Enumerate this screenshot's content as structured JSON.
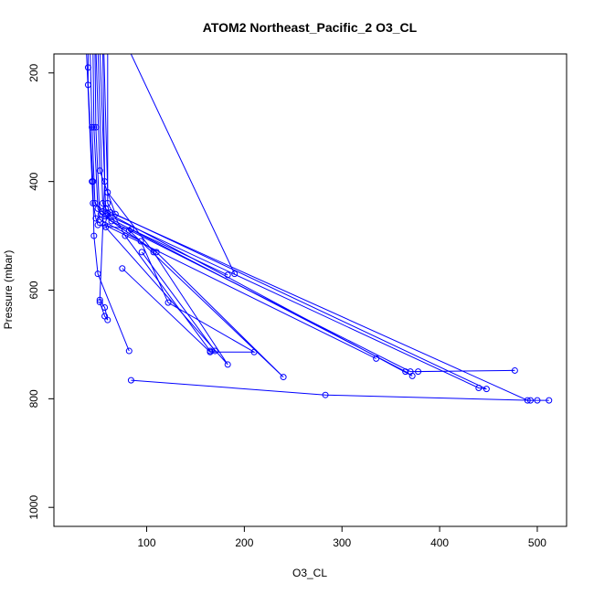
{
  "chart_data": {
    "type": "line",
    "title": "ATOM2 Northeast_Pacific_2 O3_CL",
    "xlabel": "O3_CL",
    "ylabel": "Pressure (mbar)",
    "xlim": [
      5,
      530
    ],
    "ylim": [
      1035,
      165
    ],
    "y_inverted": true,
    "x_ticks": [
      100,
      200,
      300,
      400,
      500
    ],
    "y_ticks": [
      200,
      400,
      600,
      800,
      1000
    ],
    "grid": false,
    "legend": "none",
    "series_color": "#0000ff",
    "series": [
      {
        "points": [
          [
            38,
            150
          ],
          [
            44,
            400
          ],
          [
            45,
            440
          ],
          [
            48,
            468
          ],
          [
            50,
            480
          ],
          [
            84,
            488
          ],
          [
            183,
            572
          ]
        ]
      },
      {
        "points": [
          [
            40,
            150
          ],
          [
            40,
            190
          ],
          [
            40,
            222
          ],
          [
            45,
            400
          ],
          [
            46,
            500
          ],
          [
            50,
            570
          ],
          [
            82,
            712
          ]
        ]
      },
      {
        "points": [
          [
            42,
            150
          ],
          [
            44,
            300
          ],
          [
            47,
            440
          ],
          [
            55,
            455
          ],
          [
            64,
            473
          ],
          [
            370,
            750
          ],
          [
            477,
            748
          ],
          [
            378,
            750
          ]
        ]
      },
      {
        "points": [
          [
            45,
            150
          ],
          [
            46,
            300
          ],
          [
            50,
            450
          ],
          [
            53,
            460
          ],
          [
            110,
            530
          ],
          [
            240,
            760
          ],
          [
            82,
            490
          ]
        ]
      },
      {
        "points": [
          [
            47,
            150
          ],
          [
            48,
            300
          ],
          [
            52,
            470
          ],
          [
            94,
            510
          ],
          [
            122,
            623
          ],
          [
            210,
            714
          ],
          [
            165,
            714
          ],
          [
            75,
            560
          ]
        ]
      },
      {
        "points": [
          [
            48,
            150
          ],
          [
            52,
            380
          ],
          [
            68,
            460
          ],
          [
            448,
            782
          ],
          [
            440,
            780
          ],
          [
            60,
            462
          ],
          [
            57,
            480
          ],
          [
            335,
            726
          ]
        ]
      },
      {
        "points": [
          [
            50,
            150
          ],
          [
            55,
            440
          ],
          [
            60,
            458
          ],
          [
            372,
            758
          ],
          [
            365,
            750
          ],
          [
            58,
            464
          ]
        ]
      },
      {
        "points": [
          [
            52,
            150
          ],
          [
            58,
            450
          ],
          [
            63,
            457
          ],
          [
            490,
            803
          ],
          [
            512,
            803
          ],
          [
            500,
            803
          ]
        ]
      },
      {
        "points": [
          [
            55,
            150
          ],
          [
            57,
            400
          ],
          [
            52,
            618
          ],
          [
            57,
            632
          ],
          [
            60,
            655
          ],
          [
            57,
            648
          ],
          [
            52,
            622
          ]
        ]
      },
      {
        "points": [
          [
            56,
            150
          ],
          [
            60,
            420
          ],
          [
            107,
            530
          ],
          [
            183,
            737
          ],
          [
            58,
            484
          ]
        ]
      },
      {
        "points": [
          [
            60,
            150
          ],
          [
            60,
            440
          ],
          [
            78,
            500
          ],
          [
            165,
            712
          ],
          [
            170,
            712
          ],
          [
            95,
            530
          ]
        ]
      },
      {
        "points": [
          [
            80,
            150
          ],
          [
            190,
            570
          ]
        ]
      },
      {
        "points": [
          [
            84,
            766
          ],
          [
            283,
            793
          ],
          [
            493,
            803
          ]
        ]
      }
    ]
  }
}
